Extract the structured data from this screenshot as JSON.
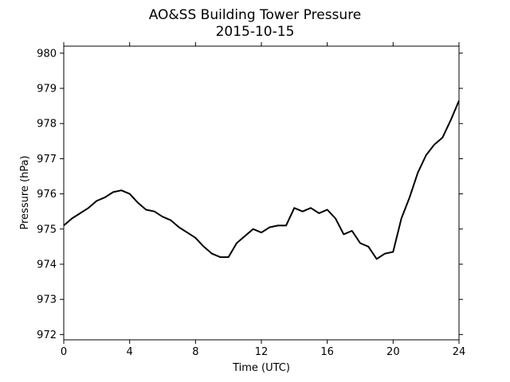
{
  "chart_data": {
    "type": "line",
    "title": "AO&SS Building Tower Pressure",
    "subtitle": "2015-10-15",
    "xlabel": "Time (UTC)",
    "ylabel": "Pressure (hPa)",
    "xlim": [
      0,
      24
    ],
    "ylim": [
      971.85,
      980.2
    ],
    "xticks": [
      0,
      4,
      8,
      12,
      16,
      20,
      24
    ],
    "yticks": [
      972,
      973,
      974,
      975,
      976,
      977,
      978,
      979,
      980
    ],
    "grid": false,
    "series_color": "#000000",
    "series": [
      {
        "x": [
          0,
          0.5,
          1,
          1.5,
          2,
          2.5,
          3,
          3.5,
          4,
          4.5,
          5,
          5.5,
          6,
          6.5,
          7,
          7.5,
          8,
          8.5,
          9,
          9.5,
          10,
          10.5,
          11,
          11.5,
          12,
          12.5,
          13,
          13.5,
          14,
          14.5,
          15,
          15.5,
          16,
          16.5,
          17,
          17.5,
          18,
          18.5,
          19,
          19.5,
          20,
          20.5,
          21,
          21.5,
          22,
          22.5,
          23,
          23.5,
          24
        ],
        "values": [
          975.1,
          975.3,
          975.45,
          975.6,
          975.8,
          975.9,
          976.05,
          976.1,
          976.0,
          975.75,
          975.55,
          975.5,
          975.35,
          975.25,
          975.05,
          974.9,
          974.75,
          974.5,
          974.3,
          974.2,
          974.2,
          974.6,
          974.8,
          975.0,
          974.9,
          975.05,
          975.1,
          975.1,
          975.6,
          975.5,
          975.6,
          975.45,
          975.55,
          975.3,
          974.85,
          974.95,
          974.6,
          974.5,
          974.15,
          974.3,
          974.35,
          975.3,
          975.9,
          976.6,
          977.1,
          977.4,
          977.6,
          978.1,
          978.65
        ]
      }
    ]
  }
}
